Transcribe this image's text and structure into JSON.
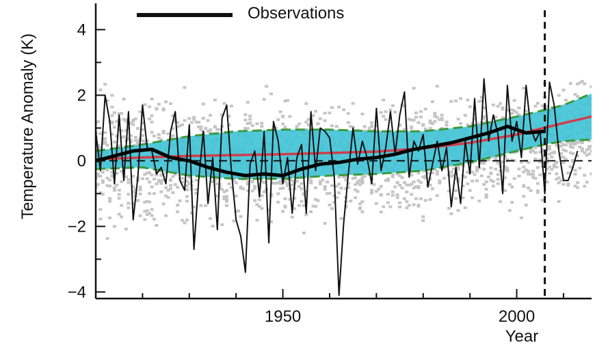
{
  "chart_data": {
    "type": "line",
    "title": "",
    "xlabel": "Year",
    "ylabel": "Temperature Anomaly (K)",
    "xlim": [
      1910,
      2016
    ],
    "ylim": [
      -4.2,
      4.8
    ],
    "x_ticks": [
      1950,
      2000
    ],
    "y_ticks": [
      -4,
      -2,
      0,
      2,
      4
    ],
    "x_tick_labels": [
      "1950",
      "2000"
    ],
    "y_tick_labels": [
      "−4",
      "−2",
      "0",
      "2",
      "4"
    ],
    "grid": false,
    "legend": {
      "position": "top-left",
      "entries": [
        "Observations"
      ]
    },
    "reference_lines": {
      "zero_dashed": 0,
      "vertical_dashed_x": 2006
    },
    "series": [
      {
        "name": "Observations",
        "style": "thin",
        "color": "#111111",
        "x": [
          1910,
          1911,
          1912,
          1913,
          1914,
          1915,
          1916,
          1917,
          1918,
          1919,
          1920,
          1921,
          1922,
          1923,
          1924,
          1925,
          1926,
          1927,
          1928,
          1929,
          1930,
          1931,
          1932,
          1933,
          1934,
          1935,
          1936,
          1937,
          1938,
          1939,
          1940,
          1941,
          1942,
          1943,
          1944,
          1945,
          1946,
          1947,
          1948,
          1949,
          1950,
          1951,
          1952,
          1953,
          1954,
          1955,
          1956,
          1957,
          1958,
          1959,
          1960,
          1961,
          1962,
          1963,
          1964,
          1965,
          1966,
          1967,
          1968,
          1969,
          1970,
          1971,
          1972,
          1973,
          1974,
          1975,
          1976,
          1977,
          1978,
          1979,
          1980,
          1981,
          1982,
          1983,
          1984,
          1985,
          1986,
          1987,
          1988,
          1989,
          1990,
          1991,
          1992,
          1993,
          1994,
          1995,
          1996,
          1997,
          1998,
          1999,
          2000,
          2001,
          2002,
          2003,
          2004,
          2005,
          2006,
          2007,
          2008,
          2009,
          2010,
          2011,
          2012,
          2013
        ],
        "values": [
          0.9,
          -0.3,
          2.0,
          1.2,
          -0.7,
          1.4,
          -0.6,
          1.5,
          -1.8,
          -0.5,
          1.7,
          0.4,
          0.3,
          -0.4,
          -0.2,
          -0.7,
          0.9,
          1.5,
          -0.6,
          -0.9,
          1.1,
          -2.7,
          -0.6,
          0.9,
          -1.3,
          0.1,
          -2.1,
          1.3,
          1.7,
          -0.3,
          -1.8,
          -2.3,
          -3.4,
          -0.1,
          0.3,
          -1.1,
          0.9,
          -2.5,
          1.2,
          0.6,
          -0.7,
          0.1,
          -1.6,
          0.1,
          0.5,
          -1.6,
          1.5,
          -0.3,
          1.0,
          0.9,
          0.7,
          -0.5,
          -4.1,
          -1.9,
          -0.4,
          1.0,
          -0.1,
          0.6,
          0.1,
          -0.7,
          1.6,
          -0.3,
          0.4,
          1.5,
          0.2,
          1.4,
          2.1,
          -0.5,
          0.6,
          0.3,
          0.8,
          -0.8,
          -0.1,
          0.6,
          -0.3,
          0.4,
          -1.4,
          -0.2,
          -1.3,
          0.6,
          -0.4,
          1.9,
          -0.2,
          2.5,
          0.6,
          1.4,
          0.8,
          -1.0,
          2.3,
          0.6,
          1.2,
          0.1,
          2.3,
          1.0,
          0.6,
          0.9,
          -1.0,
          2.4,
          1.7,
          0.3,
          -0.6,
          -0.6,
          -0.2,
          0.3
        ]
      },
      {
        "name": "",
        "style": "thick",
        "color": "#000000",
        "x": [
          1910,
          1914,
          1918,
          1922,
          1926,
          1930,
          1934,
          1938,
          1942,
          1946,
          1950,
          1954,
          1958,
          1962,
          1966,
          1970,
          1974,
          1978,
          1982,
          1986,
          1990,
          1994,
          1998,
          2002,
          2006
        ],
        "values": [
          0.0,
          0.15,
          0.3,
          0.35,
          0.1,
          0.0,
          -0.2,
          -0.35,
          -0.45,
          -0.4,
          -0.45,
          -0.25,
          -0.1,
          -0.05,
          0.05,
          0.1,
          0.2,
          0.35,
          0.45,
          0.55,
          0.7,
          0.85,
          1.05,
          0.85,
          0.9
        ]
      },
      {
        "name": "",
        "style": "mean",
        "color": "#d23c4b",
        "x": [
          1910,
          1930,
          1950,
          1970,
          1980,
          1990,
          2000,
          2010,
          2016
        ],
        "values": [
          0.05,
          0.15,
          0.2,
          0.28,
          0.38,
          0.55,
          0.8,
          1.15,
          1.35
        ]
      }
    ],
    "bands": [
      {
        "fill": "#3ec3d6",
        "edge_color": "#3a9a3a",
        "x": [
          1910,
          1920,
          1930,
          1940,
          1950,
          1960,
          1970,
          1980,
          1990,
          2000,
          2006,
          2010,
          2016
        ],
        "lower": [
          -0.25,
          -0.2,
          -0.45,
          -0.55,
          -0.55,
          -0.45,
          -0.4,
          -0.3,
          -0.05,
          0.3,
          0.5,
          0.6,
          0.65
        ],
        "upper": [
          0.3,
          0.5,
          0.75,
          0.9,
          0.95,
          0.95,
          0.9,
          0.9,
          1.05,
          1.35,
          1.55,
          1.7,
          2.05
        ]
      }
    ],
    "scatter_cloud": {
      "color": "#c5c5c5"
    }
  }
}
